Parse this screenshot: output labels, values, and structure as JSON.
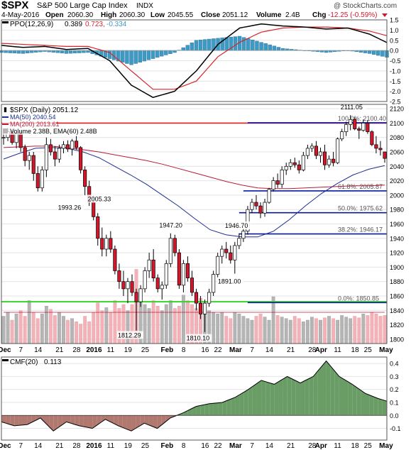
{
  "header": {
    "symbol": "$SPX",
    "name": "S&P 500 Large Cap Index",
    "exchange": "INDX",
    "watermark": "@ StockCharts.com",
    "date": "4-May-2016",
    "open_label": "Open",
    "open": "2060.30",
    "high_label": "High",
    "high": "2060.30",
    "low_label": "Low",
    "low": "2045.55",
    "close_label": "Close",
    "close": "2051.12",
    "volume_label": "Volume",
    "volume": "2.4B",
    "chg_label": "Chg",
    "chg": "-12.25 (-0.59%)"
  },
  "colors": {
    "up_candle": "#ffffff",
    "down_candle": "#d2172c",
    "ma50": "#1f2f8f",
    "ma200": "#b81b3a",
    "volume_up": "#b5b5b5",
    "volume_down": "#f2b2b8",
    "fib_line": "#0a1aa0",
    "ppo_line": "#000000",
    "ppo_signal": "#d9252a",
    "ppo_hist": "#3d9ac4",
    "cmf_pos": "#6a9d66",
    "cmf_neg": "#b0786e",
    "green_line": "#3ad12a",
    "red_line": "#e0201b"
  },
  "chart_data": [
    {
      "type": "line",
      "panel": "ppo",
      "legend": "PPO(12,26,9)",
      "legend_values": [
        "0.389",
        "0.723",
        "-0.334"
      ],
      "ylim": [
        -2.5,
        1.5
      ],
      "yticks": [
        "1.5",
        "1.0",
        "0.5",
        "0.0",
        "-0.5",
        "-1.0",
        "-1.5",
        "-2.0",
        "-2.5"
      ],
      "x": [
        0,
        5,
        10,
        15,
        20,
        25,
        30,
        35,
        40,
        45,
        50,
        55,
        60,
        65,
        70,
        75,
        80,
        85,
        89
      ],
      "series": [
        {
          "values": [
            0.25,
            0.15,
            0.2,
            0.05,
            0.1,
            -0.5,
            -1.7,
            -2.3,
            -2.0,
            -1.0,
            0.3,
            1.1,
            1.3,
            1.2,
            1.15,
            1.05,
            1.1,
            0.8,
            0.389
          ]
        },
        {
          "values": [
            0.35,
            0.3,
            0.25,
            0.2,
            0.2,
            -0.1,
            -1.0,
            -1.9,
            -1.9,
            -1.5,
            -0.3,
            0.4,
            0.9,
            1.1,
            1.15,
            1.15,
            1.1,
            0.95,
            0.723
          ]
        }
      ]
    },
    {
      "type": "candlestick",
      "panel": "price",
      "legend": [
        "$SPX (Daily) 2051.12",
        "MA(50) 2040.54",
        "MA(200) 2013.61",
        "Volume 2.38B, EMA(60) 2.48B"
      ],
      "ylim": [
        1800,
        2120
      ],
      "yticks": [
        "2120",
        "2100",
        "2080",
        "2060",
        "2040",
        "2020",
        "2000",
        "1980",
        "1960",
        "1940",
        "1920",
        "1900",
        "1880",
        "1860",
        "1840",
        "1820",
        "1800"
      ],
      "categories": [
        "Dec",
        "7",
        "14",
        "21",
        "28",
        "2016",
        "11",
        "19",
        "25",
        "Feb",
        "8",
        "16",
        "22",
        "Mar",
        "7",
        "14",
        "21",
        "28",
        "Apr",
        "11",
        "18",
        "25",
        "May"
      ],
      "ohlc": [
        [
          2080,
          2090,
          2070,
          2080
        ],
        [
          2080,
          2093,
          2075,
          2088
        ],
        [
          2088,
          2092,
          2070,
          2073
        ],
        [
          2073,
          2088,
          2065,
          2085
        ],
        [
          2085,
          2090,
          2060,
          2066
        ],
        [
          2066,
          2070,
          2040,
          2048
        ],
        [
          2048,
          2060,
          2035,
          2055
        ],
        [
          2055,
          2060,
          2020,
          2030
        ],
        [
          2030,
          2040,
          2005,
          2010
        ],
        [
          2010,
          2040,
          2005,
          2035
        ],
        [
          2035,
          2080,
          2025,
          2070
        ],
        [
          2070,
          2078,
          2055,
          2060
        ],
        [
          2060,
          2068,
          2040,
          2050
        ],
        [
          2050,
          2070,
          2045,
          2065
        ],
        [
          2065,
          2075,
          2058,
          2070
        ],
        [
          2070,
          2076,
          2060,
          2064
        ],
        [
          2064,
          2078,
          2055,
          2075
        ],
        [
          2075,
          2082,
          2063,
          2066
        ],
        [
          2066,
          2068,
          2030,
          2035
        ],
        [
          2035,
          2040,
          2000,
          2012
        ],
        [
          2012,
          2020,
          1985,
          1990
        ],
        [
          1990,
          2000,
          1965,
          1970
        ],
        [
          1970,
          1975,
          1930,
          1940
        ],
        [
          1940,
          1955,
          1915,
          1925
        ],
        [
          1925,
          1945,
          1915,
          1940
        ],
        [
          1940,
          1950,
          1920,
          1925
        ],
        [
          1925,
          1930,
          1890,
          1895
        ],
        [
          1895,
          1905,
          1870,
          1880
        ],
        [
          1880,
          1895,
          1860,
          1870
        ],
        [
          1870,
          1885,
          1850,
          1880
        ],
        [
          1880,
          1890,
          1860,
          1865
        ],
        [
          1865,
          1870,
          1812,
          1852
        ],
        [
          1852,
          1875,
          1845,
          1870
        ],
        [
          1870,
          1900,
          1865,
          1895
        ],
        [
          1895,
          1920,
          1885,
          1910
        ],
        [
          1910,
          1925,
          1880,
          1885
        ],
        [
          1885,
          1890,
          1865,
          1870
        ],
        [
          1870,
          1880,
          1855,
          1875
        ],
        [
          1875,
          1910,
          1870,
          1905
        ],
        [
          1905,
          1947,
          1900,
          1940
        ],
        [
          1940,
          1945,
          1915,
          1920
        ],
        [
          1920,
          1925,
          1870,
          1875
        ],
        [
          1875,
          1910,
          1865,
          1905
        ],
        [
          1905,
          1915,
          1880,
          1885
        ],
        [
          1885,
          1895,
          1860,
          1865
        ],
        [
          1865,
          1870,
          1840,
          1850
        ],
        [
          1850,
          1860,
          1828,
          1835
        ],
        [
          1835,
          1855,
          1810,
          1850
        ],
        [
          1850,
          1870,
          1845,
          1865
        ],
        [
          1865,
          1895,
          1860,
          1890
        ],
        [
          1890,
          1920,
          1885,
          1915
        ],
        [
          1915,
          1930,
          1905,
          1925
        ],
        [
          1925,
          1935,
          1912,
          1920
        ],
        [
          1920,
          1930,
          1905,
          1910
        ],
        [
          1910,
          1935,
          1891,
          1930
        ],
        [
          1930,
          1947,
          1925,
          1940
        ],
        [
          1940,
          1955,
          1935,
          1950
        ],
        [
          1950,
          1985,
          1945,
          1980
        ],
        [
          1980,
          1995,
          1975,
          1990
        ],
        [
          1990,
          2000,
          1980,
          1985
        ],
        [
          1985,
          1990,
          1968,
          1975
        ],
        [
          1975,
          1995,
          1970,
          1990
        ],
        [
          1990,
          2010,
          1988,
          2008
        ],
        [
          2008,
          2025,
          2005,
          2020
        ],
        [
          2020,
          2030,
          2010,
          2015
        ],
        [
          2015,
          2040,
          2010,
          2035
        ],
        [
          2035,
          2045,
          2028,
          2040
        ],
        [
          2040,
          2050,
          2035,
          2045
        ],
        [
          2045,
          2052,
          2038,
          2042
        ],
        [
          2042,
          2048,
          2030,
          2035
        ],
        [
          2035,
          2060,
          2033,
          2055
        ],
        [
          2055,
          2070,
          2050,
          2065
        ],
        [
          2065,
          2072,
          2060,
          2068
        ],
        [
          2068,
          2075,
          2050,
          2055
        ],
        [
          2055,
          2066,
          2045,
          2060
        ],
        [
          2060,
          2070,
          2035,
          2042
        ],
        [
          2042,
          2055,
          2038,
          2050
        ],
        [
          2050,
          2060,
          2040,
          2045
        ],
        [
          2045,
          2080,
          2043,
          2078
        ],
        [
          2078,
          2092,
          2075,
          2088
        ],
        [
          2088,
          2102,
          2082,
          2098
        ],
        [
          2098,
          2111,
          2090,
          2105
        ],
        [
          2105,
          2108,
          2090,
          2092
        ],
        [
          2092,
          2095,
          2078,
          2090
        ],
        [
          2090,
          2105,
          2088,
          2100
        ],
        [
          2100,
          2104,
          2085,
          2088
        ],
        [
          2088,
          2090,
          2068,
          2070
        ],
        [
          2070,
          2082,
          2058,
          2065
        ],
        [
          2065,
          2075,
          2055,
          2063
        ],
        [
          2060,
          2060,
          2045,
          2051
        ]
      ],
      "annotations": [
        {
          "label": "2111.05",
          "value": 2111.05
        },
        {
          "label": "2005.33",
          "value": 2005.33
        },
        {
          "label": "1993.26",
          "value": 1993.26
        },
        {
          "label": "1947.20",
          "value": 1947.2
        },
        {
          "label": "1946.70",
          "value": 1946.7
        },
        {
          "label": "1891.00",
          "value": 1891.0
        },
        {
          "label": "1812.29",
          "value": 1812.29
        },
        {
          "label": "1810.10",
          "value": 1810.1
        }
      ],
      "fib_levels": [
        {
          "label": "100.0%: 2100.40",
          "value": 2100.4
        },
        {
          "label": "61.8%: 2005.87",
          "value": 2005.87
        },
        {
          "label": "50.0%: 1975.62",
          "value": 1975.62
        },
        {
          "label": "38.2%: 1946.17",
          "value": 1946.17
        },
        {
          "label": "0.0%: 1850.85",
          "value": 1850.85
        }
      ],
      "horizontal_lines": [
        {
          "color": "red",
          "value": 2100
        },
        {
          "color": "green",
          "value": 1852
        }
      ],
      "ma50": [
        2050,
        2058,
        2065,
        2066,
        2065,
        2060,
        2052,
        2040,
        2028,
        2015,
        2000,
        1985,
        1968,
        1952,
        1945,
        1942,
        1942,
        1950,
        1966,
        1985,
        2002,
        2016,
        2028,
        2036,
        2041
      ],
      "ma200": [
        2066,
        2067,
        2068,
        2068,
        2066,
        2063,
        2060,
        2056,
        2052,
        2048,
        2043,
        2037,
        2031,
        2025,
        2019,
        2014,
        2010,
        2009,
        2009,
        2010,
        2011,
        2012,
        2013,
        2013,
        2014
      ],
      "volume_rel": [
        0.35,
        0.4,
        0.3,
        0.38,
        0.42,
        0.35,
        0.55,
        0.4,
        0.32,
        0.38,
        0.48,
        0.44,
        0.36,
        0.4,
        0.35,
        0.3,
        0.32,
        0.28,
        0.25,
        0.35,
        0.28,
        0.4,
        0.52,
        0.42,
        0.46,
        0.4,
        0.55,
        0.45,
        0.5,
        0.42,
        0.5,
        0.95,
        0.55,
        0.5,
        0.45,
        0.55,
        0.48,
        0.42,
        0.5,
        0.55,
        0.45,
        0.48,
        0.62,
        0.55,
        0.5,
        0.45,
        0.58,
        0.52,
        0.42,
        0.4,
        0.38,
        0.4,
        0.35,
        0.32,
        0.4,
        0.38,
        0.35,
        0.32,
        0.3,
        0.35,
        0.38,
        0.34,
        0.3,
        0.6,
        0.36,
        0.34,
        0.32,
        0.3,
        0.35,
        0.32,
        0.28,
        0.3,
        0.34,
        0.32,
        0.3,
        0.33,
        0.35,
        0.32,
        0.3,
        0.36,
        0.34,
        0.32,
        0.35,
        0.33,
        0.38,
        0.36,
        0.4,
        0.38,
        0.35,
        0.36
      ]
    },
    {
      "type": "area",
      "panel": "cmf",
      "legend": "CMF(20)",
      "legend_value": "0.113",
      "ylim": [
        -0.2,
        0.4
      ],
      "yticks": [
        "0.4",
        "0.3",
        "0.2",
        "0.1",
        "0.0",
        "-0.1"
      ],
      "x": [
        0,
        3,
        6,
        9,
        12,
        15,
        18,
        21,
        24,
        27,
        30,
        33,
        36,
        39,
        42,
        45,
        48,
        51,
        54,
        57,
        60,
        63,
        66,
        69,
        72,
        75,
        78,
        81,
        84,
        87,
        89
      ],
      "values": [
        -0.05,
        -0.08,
        -0.07,
        -0.02,
        -0.12,
        -0.05,
        -0.08,
        -0.1,
        -0.03,
        -0.08,
        -0.12,
        -0.06,
        -0.1,
        -0.02,
        0.02,
        0.07,
        0.09,
        0.1,
        0.14,
        0.2,
        0.27,
        0.24,
        0.3,
        0.25,
        0.3,
        0.42,
        0.3,
        0.24,
        0.17,
        0.13,
        0.11
      ]
    }
  ]
}
